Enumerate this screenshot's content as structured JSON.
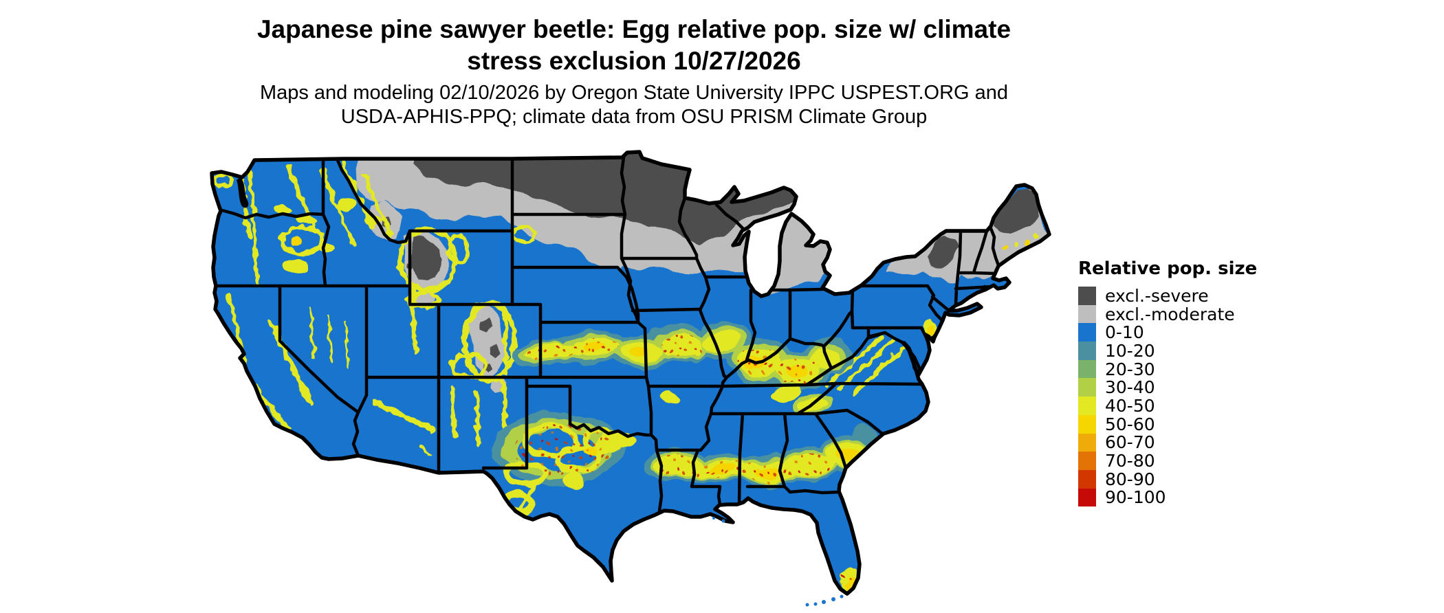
{
  "header": {
    "title_line1": "Japanese pine sawyer beetle: Egg relative pop. size w/ climate",
    "title_line2": "stress exclusion 10/27/2026",
    "subtitle_line1": "Maps and modeling 02/10/2026 by Oregon State University IPPC USPEST.ORG and",
    "subtitle_line2": "USDA-APHIS-PPQ; climate data from OSU PRISM Climate Group"
  },
  "legend": {
    "title": "Relative pop. size",
    "items": [
      {
        "key": "sev",
        "label": "excl.-severe",
        "color": "#4D4D4D"
      },
      {
        "key": "mod",
        "label": "excl.-moderate",
        "color": "#BEBEBE"
      },
      {
        "key": "c0",
        "label": "0-10",
        "color": "#1874CD"
      },
      {
        "key": "c10",
        "label": "10-20",
        "color": "#4A90A0"
      },
      {
        "key": "c20",
        "label": "20-30",
        "color": "#7AB26C"
      },
      {
        "key": "c30",
        "label": "30-40",
        "color": "#B2D046"
      },
      {
        "key": "c40",
        "label": "40-50",
        "color": "#E2E822"
      },
      {
        "key": "c50",
        "label": "50-60",
        "color": "#F6D600"
      },
      {
        "key": "c60",
        "label": "60-70",
        "color": "#EEAB0A"
      },
      {
        "key": "c70",
        "label": "70-80",
        "color": "#E47305"
      },
      {
        "key": "c80",
        "label": "80-90",
        "color": "#D23700"
      },
      {
        "key": "c90",
        "label": "90-100",
        "color": "#C60A08"
      }
    ]
  },
  "map": {
    "type": "choropleth-raster",
    "area": "Contiguous United States with state borders",
    "background": "#FFFFFF",
    "border_color": "#000000",
    "base_category": "0-10",
    "regions_by_category": {
      "excl-severe": "northeastern Montana, North Dakota, northern Minnesota, northern Wisconsin, western Upper Michigan, Yellowstone high country, Colorado alpine spots, Adirondacks, northern Maine",
      "excl-moderate": "band across northern Great Plains, central Montana, upper Great Lakes states, northern Lower Michigan, central Idaho and Colorado Rockies, northern New England and New York",
      "40-60": "western mountain ranges (Cascades, Sierra Nevada, Rockies), central plains belt from Kansas through the Ohio Valley and Appalachians, Gulf coastal plain belt, central Texas, southern Florida tip, Maine coast"
    }
  }
}
